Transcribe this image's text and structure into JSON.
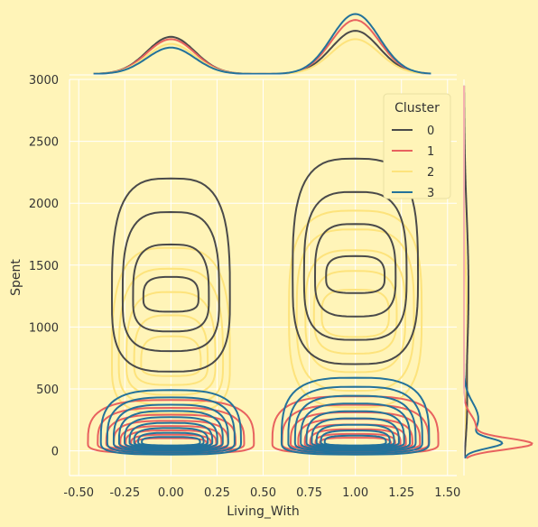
{
  "chart_data": {
    "type": "kde-contour-joint",
    "xlabel": "Living_With",
    "ylabel": "Spent",
    "xlim": [
      -0.55,
      1.55
    ],
    "ylim": [
      -200,
      3000
    ],
    "xticks": [
      "-0.50",
      "-0.25",
      "0.00",
      "0.25",
      "0.50",
      "0.75",
      "1.00",
      "1.25",
      "1.50"
    ],
    "xtick_values": [
      -0.5,
      -0.25,
      0.0,
      0.25,
      0.5,
      0.75,
      1.0,
      1.25,
      1.5
    ],
    "yticks": [
      "0",
      "500",
      "1000",
      "1500",
      "2000",
      "2500",
      "3000"
    ],
    "ytick_values": [
      0,
      500,
      1000,
      1500,
      2000,
      2500,
      3000
    ],
    "grid": true,
    "legend": {
      "title": "Cluster",
      "placement": "top-right",
      "entries": [
        {
          "label": "0",
          "color": "#4a4a4a"
        },
        {
          "label": "1",
          "color": "#e8625f"
        },
        {
          "label": "2",
          "color": "#fde37c"
        },
        {
          "label": "3",
          "color": "#23729a"
        }
      ]
    },
    "series": [
      {
        "cluster": "0",
        "color": "#4a4a4a",
        "groups": [
          {
            "x": 0.0,
            "spent_center": 1230,
            "spent_low": 640,
            "spent_high": 2200,
            "x_halfwidth": 0.32
          },
          {
            "x": 1.0,
            "spent_center": 1400,
            "spent_low": 700,
            "spent_high": 2360,
            "x_halfwidth": 0.34
          }
        ]
      },
      {
        "cluster": "1",
        "color": "#e8625f",
        "groups": [
          {
            "x": 0.0,
            "spent_center": 60,
            "spent_low": -20,
            "spent_high": 410,
            "x_halfwidth": 0.45
          },
          {
            "x": 1.0,
            "spent_center": 60,
            "spent_low": -20,
            "spent_high": 440,
            "x_halfwidth": 0.45
          }
        ]
      },
      {
        "cluster": "2",
        "color": "#fde37c",
        "groups": [
          {
            "x": 0.0,
            "spent_center": 700,
            "spent_low": 300,
            "spent_high": 1640,
            "x_halfwidth": 0.32
          },
          {
            "x": 1.0,
            "spent_center": 1100,
            "spent_low": 350,
            "spent_high": 1940,
            "x_halfwidth": 0.36
          }
        ]
      },
      {
        "cluster": "3",
        "color": "#23729a",
        "groups": [
          {
            "x": 0.0,
            "spent_center": 70,
            "spent_low": -30,
            "spent_high": 490,
            "x_halfwidth": 0.38
          },
          {
            "x": 1.0,
            "spent_center": 70,
            "spent_low": -30,
            "spent_high": 590,
            "x_halfwidth": 0.4
          }
        ]
      }
    ],
    "marginal_x": {
      "description": "KDE of Living_With per cluster",
      "peaks": [
        {
          "cluster": "0",
          "left_height": 0.62,
          "right_height": 0.72
        },
        {
          "cluster": "1",
          "left_height": 0.58,
          "right_height": 0.9
        },
        {
          "cluster": "2",
          "left_height": 0.5,
          "right_height": 0.58
        },
        {
          "cluster": "3",
          "left_height": 0.44,
          "right_height": 1.0
        }
      ]
    },
    "marginal_y": {
      "description": "KDE of Spent per cluster",
      "peaks": [
        {
          "cluster": "0",
          "peak_spent": 1300,
          "height": 0.07
        },
        {
          "cluster": "1",
          "peak_spent": 50,
          "height": 1.0
        },
        {
          "cluster": "2",
          "peak_spent": 900,
          "height": 0.05
        },
        {
          "cluster": "3",
          "peak_spent": 60,
          "height": 0.5
        }
      ]
    }
  }
}
